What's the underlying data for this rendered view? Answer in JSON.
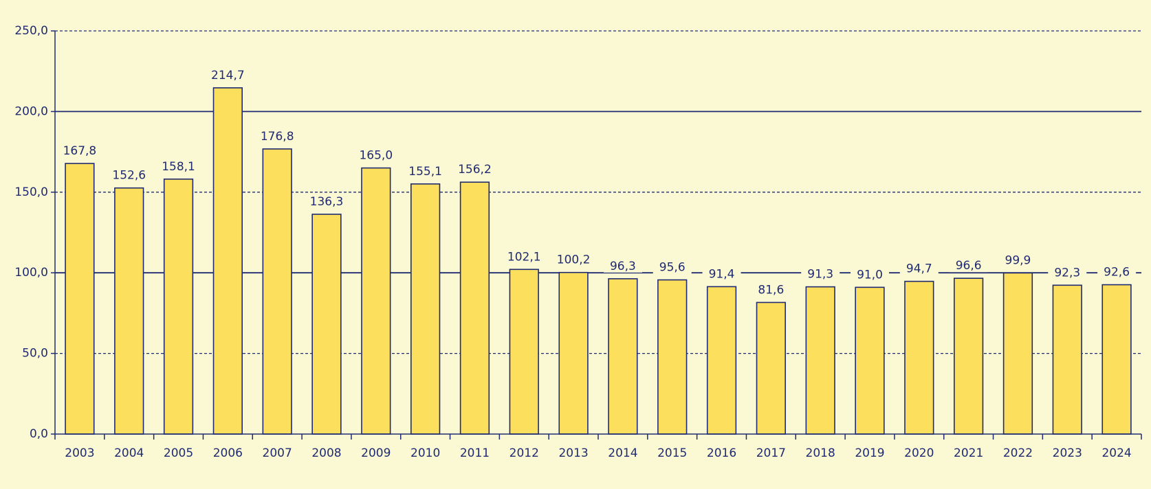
{
  "chart_data": {
    "type": "bar",
    "categories": [
      "2003",
      "2004",
      "2005",
      "2006",
      "2007",
      "2008",
      "2009",
      "2010",
      "2011",
      "2012",
      "2013",
      "2014",
      "2015",
      "2016",
      "2017",
      "2018",
      "2019",
      "2020",
      "2021",
      "2022",
      "2023",
      "2024"
    ],
    "values": [
      167.8,
      152.6,
      158.1,
      214.7,
      176.8,
      136.3,
      165.0,
      155.1,
      156.2,
      102.1,
      100.2,
      96.3,
      95.6,
      91.4,
      81.6,
      91.3,
      91.0,
      94.7,
      96.6,
      99.9,
      92.3,
      92.6
    ],
    "value_labels": [
      "167,8",
      "152,6",
      "158,1",
      "214,7",
      "176,8",
      "136,3",
      "165,0",
      "155,1",
      "156,2",
      "102,1",
      "100,2",
      "96,3",
      "95,6",
      "91,4",
      "81,6",
      "91,3",
      "91,0",
      "94,7",
      "96,6",
      "99,9",
      "92,3",
      "92,6"
    ],
    "color": "#fcdf5c",
    "ylim": [
      0,
      250
    ],
    "yticks": [
      {
        "value": 0,
        "label": "0,0"
      },
      {
        "value": 50,
        "label": "50,0"
      },
      {
        "value": 100,
        "label": "100,0"
      },
      {
        "value": 150,
        "label": "150,0"
      },
      {
        "value": 200,
        "label": "200,0"
      },
      {
        "value": 250,
        "label": "250,0"
      }
    ],
    "grid": true
  }
}
